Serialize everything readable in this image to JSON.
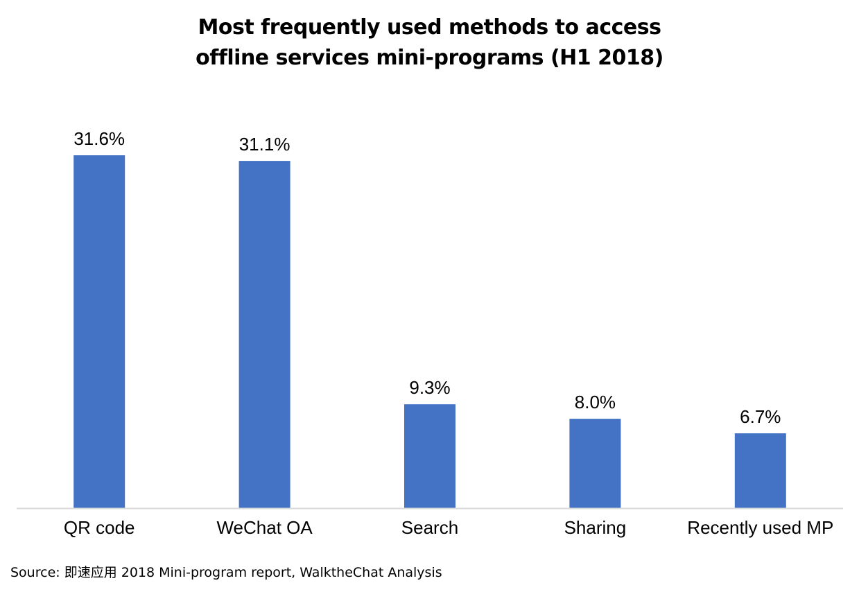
{
  "title_lines": [
    "Most frequently used methods to access",
    "offline services mini-programs (H1 2018)"
  ],
  "source_note": "Source: 即速应用 2018 Mini-program report, WalktheChat Analysis",
  "colors": {
    "bar": "#4472C4",
    "axis": "#D9D9D9",
    "text": "#000000"
  },
  "chart_data": {
    "type": "bar",
    "title": "Most frequently used methods to access offline services mini-programs (H1 2018)",
    "categories": [
      "QR code",
      "WeChat OA",
      "Search",
      "Sharing",
      "Recently used MP"
    ],
    "values": [
      31.6,
      31.1,
      9.3,
      8.0,
      6.7
    ],
    "data_labels": [
      "31.6%",
      "31.1%",
      "9.3%",
      "8.0%",
      "6.7%"
    ],
    "xlabel": "",
    "ylabel": "",
    "ylim": [
      0,
      31.6
    ],
    "grid": false,
    "legend": "none",
    "y_axis_visible": false
  }
}
